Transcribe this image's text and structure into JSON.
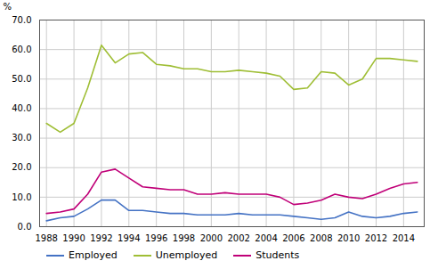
{
  "chart_data": {
    "type": "line",
    "ylabel": "%",
    "x": [
      1988,
      1989,
      1990,
      1991,
      1992,
      1993,
      1994,
      1995,
      1996,
      1997,
      1998,
      1999,
      2000,
      2001,
      2002,
      2003,
      2004,
      2005,
      2006,
      2007,
      2008,
      2009,
      2010,
      2011,
      2012,
      2013,
      2014,
      2015
    ],
    "series": [
      {
        "name": "Employed",
        "color": "#4472c4",
        "values": [
          2.0,
          3.0,
          3.5,
          6.0,
          9.0,
          9.0,
          5.5,
          5.5,
          5.0,
          4.5,
          4.5,
          4.0,
          4.0,
          4.0,
          4.5,
          4.0,
          4.0,
          4.0,
          3.5,
          3.0,
          2.5,
          3.0,
          5.0,
          3.5,
          3.0,
          3.5,
          4.5,
          5.0
        ]
      },
      {
        "name": "Unemployed",
        "color": "#9fbe35",
        "values": [
          35.0,
          32.0,
          35.0,
          47.0,
          61.5,
          55.5,
          58.5,
          59.0,
          55.0,
          54.5,
          53.5,
          53.5,
          52.5,
          52.5,
          53.0,
          52.5,
          52.0,
          51.0,
          46.5,
          47.0,
          52.5,
          52.0,
          48.0,
          50.0,
          57.0,
          57.0,
          56.5,
          56.0
        ]
      },
      {
        "name": "Students",
        "color": "#c00078",
        "values": [
          4.5,
          5.0,
          6.0,
          11.0,
          18.5,
          19.5,
          16.5,
          13.5,
          13.0,
          12.5,
          12.5,
          11.0,
          11.0,
          11.5,
          11.0,
          11.0,
          11.0,
          10.0,
          7.5,
          8.0,
          9.0,
          11.0,
          10.0,
          9.5,
          11.0,
          13.0,
          14.5,
          15.0
        ]
      }
    ],
    "xlim": [
      1987.5,
      2015.5
    ],
    "xticks": [
      1988,
      1990,
      1992,
      1994,
      1996,
      1998,
      2000,
      2002,
      2004,
      2006,
      2008,
      2010,
      2012,
      2014
    ],
    "ylim": [
      0,
      70.0
    ],
    "yticks": [
      {
        "value": 0.0,
        "label": "0.0"
      },
      {
        "value": 10.0,
        "label": "10.0"
      },
      {
        "value": 20.0,
        "label": "20.0"
      },
      {
        "value": 30.0,
        "label": "30.0"
      },
      {
        "value": 40.0,
        "label": "40.0"
      },
      {
        "value": 50.0,
        "label": "50.0"
      },
      {
        "value": 60.0,
        "label": "60.0"
      },
      {
        "value": 70.0,
        "label": "70.0"
      }
    ],
    "grid": true,
    "legend": "bottom"
  }
}
